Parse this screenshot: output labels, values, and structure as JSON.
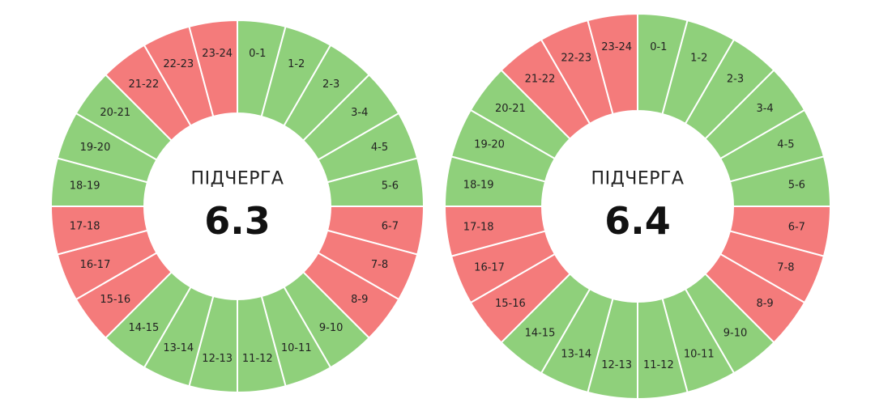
{
  "colors": {
    "on": "#8fd07b",
    "off": "#f47b7b",
    "divider": "#ffffff"
  },
  "chart_data": [
    {
      "type": "pie",
      "title": "ПІДЧЕРГА",
      "value_label": "6.3",
      "categories": [
        "0-1",
        "1-2",
        "2-3",
        "3-4",
        "4-5",
        "5-6",
        "6-7",
        "7-8",
        "8-9",
        "9-10",
        "10-11",
        "11-12",
        "12-13",
        "13-14",
        "14-15",
        "15-16",
        "16-17",
        "17-18",
        "18-19",
        "19-20",
        "20-21",
        "21-22",
        "22-23",
        "23-24"
      ],
      "status": [
        "on",
        "on",
        "on",
        "on",
        "on",
        "on",
        "off",
        "off",
        "off",
        "on",
        "on",
        "on",
        "on",
        "on",
        "on",
        "off",
        "off",
        "off",
        "on",
        "on",
        "on",
        "off",
        "off",
        "off"
      ],
      "values": [
        1,
        1,
        1,
        1,
        1,
        1,
        1,
        1,
        1,
        1,
        1,
        1,
        1,
        1,
        1,
        1,
        1,
        1,
        1,
        1,
        1,
        1,
        1,
        1
      ]
    },
    {
      "type": "pie",
      "title": "ПІДЧЕРГА",
      "value_label": "6.4",
      "categories": [
        "0-1",
        "1-2",
        "2-3",
        "3-4",
        "4-5",
        "5-6",
        "6-7",
        "7-8",
        "8-9",
        "9-10",
        "10-11",
        "11-12",
        "12-13",
        "13-14",
        "14-15",
        "15-16",
        "16-17",
        "17-18",
        "18-19",
        "19-20",
        "20-21",
        "21-22",
        "22-23",
        "23-24"
      ],
      "status": [
        "on",
        "on",
        "on",
        "on",
        "on",
        "on",
        "off",
        "off",
        "off",
        "on",
        "on",
        "on",
        "on",
        "on",
        "on",
        "off",
        "off",
        "off",
        "on",
        "on",
        "on",
        "off",
        "off",
        "off"
      ],
      "values": [
        1,
        1,
        1,
        1,
        1,
        1,
        1,
        1,
        1,
        1,
        1,
        1,
        1,
        1,
        1,
        1,
        1,
        1,
        1,
        1,
        1,
        1,
        1,
        1
      ]
    }
  ]
}
